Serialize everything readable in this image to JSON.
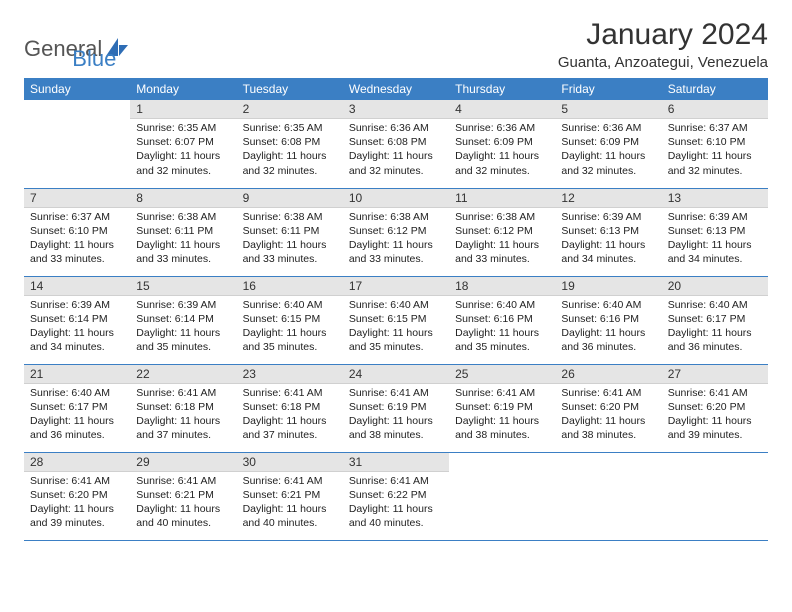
{
  "brand": {
    "general": "General",
    "blue": "Blue"
  },
  "title": "January 2024",
  "location": "Guanta, Anzoategui, Venezuela",
  "colors": {
    "header_bg": "#3b7fc4",
    "header_text": "#ffffff",
    "daynum_bg": "#e5e5e5",
    "row_border": "#3b7fc4",
    "text": "#222222",
    "background": "#ffffff"
  },
  "weekdays": [
    "Sunday",
    "Monday",
    "Tuesday",
    "Wednesday",
    "Thursday",
    "Friday",
    "Saturday"
  ],
  "weeks": [
    [
      {
        "empty": true
      },
      {
        "n": "1",
        "sunrise": "Sunrise: 6:35 AM",
        "sunset": "Sunset: 6:07 PM",
        "day1": "Daylight: 11 hours",
        "day2": "and 32 minutes."
      },
      {
        "n": "2",
        "sunrise": "Sunrise: 6:35 AM",
        "sunset": "Sunset: 6:08 PM",
        "day1": "Daylight: 11 hours",
        "day2": "and 32 minutes."
      },
      {
        "n": "3",
        "sunrise": "Sunrise: 6:36 AM",
        "sunset": "Sunset: 6:08 PM",
        "day1": "Daylight: 11 hours",
        "day2": "and 32 minutes."
      },
      {
        "n": "4",
        "sunrise": "Sunrise: 6:36 AM",
        "sunset": "Sunset: 6:09 PM",
        "day1": "Daylight: 11 hours",
        "day2": "and 32 minutes."
      },
      {
        "n": "5",
        "sunrise": "Sunrise: 6:36 AM",
        "sunset": "Sunset: 6:09 PM",
        "day1": "Daylight: 11 hours",
        "day2": "and 32 minutes."
      },
      {
        "n": "6",
        "sunrise": "Sunrise: 6:37 AM",
        "sunset": "Sunset: 6:10 PM",
        "day1": "Daylight: 11 hours",
        "day2": "and 32 minutes."
      }
    ],
    [
      {
        "n": "7",
        "sunrise": "Sunrise: 6:37 AM",
        "sunset": "Sunset: 6:10 PM",
        "day1": "Daylight: 11 hours",
        "day2": "and 33 minutes."
      },
      {
        "n": "8",
        "sunrise": "Sunrise: 6:38 AM",
        "sunset": "Sunset: 6:11 PM",
        "day1": "Daylight: 11 hours",
        "day2": "and 33 minutes."
      },
      {
        "n": "9",
        "sunrise": "Sunrise: 6:38 AM",
        "sunset": "Sunset: 6:11 PM",
        "day1": "Daylight: 11 hours",
        "day2": "and 33 minutes."
      },
      {
        "n": "10",
        "sunrise": "Sunrise: 6:38 AM",
        "sunset": "Sunset: 6:12 PM",
        "day1": "Daylight: 11 hours",
        "day2": "and 33 minutes."
      },
      {
        "n": "11",
        "sunrise": "Sunrise: 6:38 AM",
        "sunset": "Sunset: 6:12 PM",
        "day1": "Daylight: 11 hours",
        "day2": "and 33 minutes."
      },
      {
        "n": "12",
        "sunrise": "Sunrise: 6:39 AM",
        "sunset": "Sunset: 6:13 PM",
        "day1": "Daylight: 11 hours",
        "day2": "and 34 minutes."
      },
      {
        "n": "13",
        "sunrise": "Sunrise: 6:39 AM",
        "sunset": "Sunset: 6:13 PM",
        "day1": "Daylight: 11 hours",
        "day2": "and 34 minutes."
      }
    ],
    [
      {
        "n": "14",
        "sunrise": "Sunrise: 6:39 AM",
        "sunset": "Sunset: 6:14 PM",
        "day1": "Daylight: 11 hours",
        "day2": "and 34 minutes."
      },
      {
        "n": "15",
        "sunrise": "Sunrise: 6:39 AM",
        "sunset": "Sunset: 6:14 PM",
        "day1": "Daylight: 11 hours",
        "day2": "and 35 minutes."
      },
      {
        "n": "16",
        "sunrise": "Sunrise: 6:40 AM",
        "sunset": "Sunset: 6:15 PM",
        "day1": "Daylight: 11 hours",
        "day2": "and 35 minutes."
      },
      {
        "n": "17",
        "sunrise": "Sunrise: 6:40 AM",
        "sunset": "Sunset: 6:15 PM",
        "day1": "Daylight: 11 hours",
        "day2": "and 35 minutes."
      },
      {
        "n": "18",
        "sunrise": "Sunrise: 6:40 AM",
        "sunset": "Sunset: 6:16 PM",
        "day1": "Daylight: 11 hours",
        "day2": "and 35 minutes."
      },
      {
        "n": "19",
        "sunrise": "Sunrise: 6:40 AM",
        "sunset": "Sunset: 6:16 PM",
        "day1": "Daylight: 11 hours",
        "day2": "and 36 minutes."
      },
      {
        "n": "20",
        "sunrise": "Sunrise: 6:40 AM",
        "sunset": "Sunset: 6:17 PM",
        "day1": "Daylight: 11 hours",
        "day2": "and 36 minutes."
      }
    ],
    [
      {
        "n": "21",
        "sunrise": "Sunrise: 6:40 AM",
        "sunset": "Sunset: 6:17 PM",
        "day1": "Daylight: 11 hours",
        "day2": "and 36 minutes."
      },
      {
        "n": "22",
        "sunrise": "Sunrise: 6:41 AM",
        "sunset": "Sunset: 6:18 PM",
        "day1": "Daylight: 11 hours",
        "day2": "and 37 minutes."
      },
      {
        "n": "23",
        "sunrise": "Sunrise: 6:41 AM",
        "sunset": "Sunset: 6:18 PM",
        "day1": "Daylight: 11 hours",
        "day2": "and 37 minutes."
      },
      {
        "n": "24",
        "sunrise": "Sunrise: 6:41 AM",
        "sunset": "Sunset: 6:19 PM",
        "day1": "Daylight: 11 hours",
        "day2": "and 38 minutes."
      },
      {
        "n": "25",
        "sunrise": "Sunrise: 6:41 AM",
        "sunset": "Sunset: 6:19 PM",
        "day1": "Daylight: 11 hours",
        "day2": "and 38 minutes."
      },
      {
        "n": "26",
        "sunrise": "Sunrise: 6:41 AM",
        "sunset": "Sunset: 6:20 PM",
        "day1": "Daylight: 11 hours",
        "day2": "and 38 minutes."
      },
      {
        "n": "27",
        "sunrise": "Sunrise: 6:41 AM",
        "sunset": "Sunset: 6:20 PM",
        "day1": "Daylight: 11 hours",
        "day2": "and 39 minutes."
      }
    ],
    [
      {
        "n": "28",
        "sunrise": "Sunrise: 6:41 AM",
        "sunset": "Sunset: 6:20 PM",
        "day1": "Daylight: 11 hours",
        "day2": "and 39 minutes."
      },
      {
        "n": "29",
        "sunrise": "Sunrise: 6:41 AM",
        "sunset": "Sunset: 6:21 PM",
        "day1": "Daylight: 11 hours",
        "day2": "and 40 minutes."
      },
      {
        "n": "30",
        "sunrise": "Sunrise: 6:41 AM",
        "sunset": "Sunset: 6:21 PM",
        "day1": "Daylight: 11 hours",
        "day2": "and 40 minutes."
      },
      {
        "n": "31",
        "sunrise": "Sunrise: 6:41 AM",
        "sunset": "Sunset: 6:22 PM",
        "day1": "Daylight: 11 hours",
        "day2": "and 40 minutes."
      },
      {
        "empty": true
      },
      {
        "empty": true
      },
      {
        "empty": true
      }
    ]
  ]
}
